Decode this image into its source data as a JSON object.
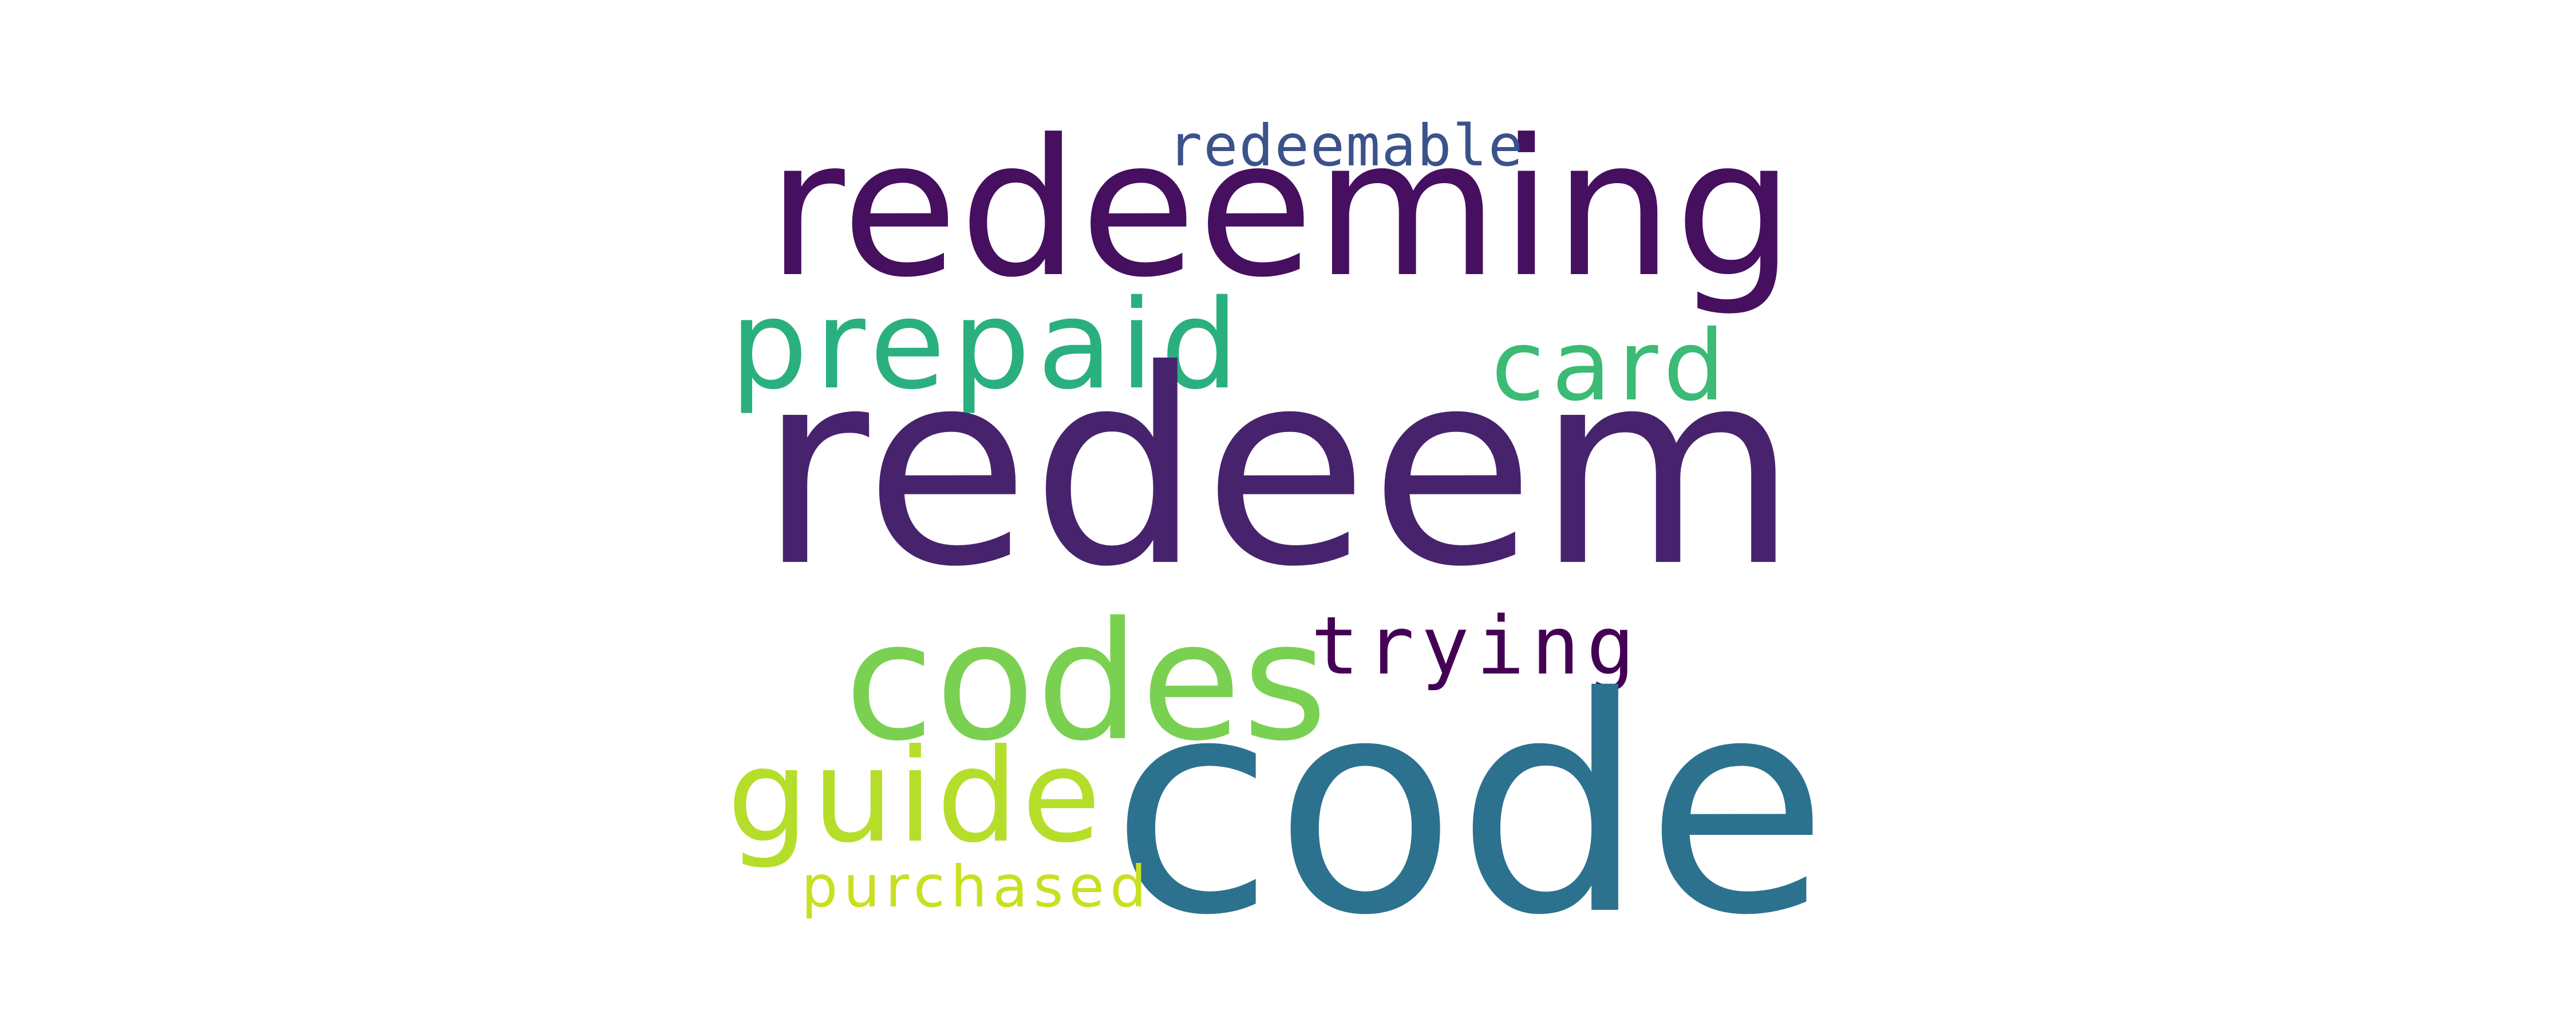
{
  "word_cloud": {
    "background": "#ffffff",
    "words": [
      {
        "id": "redeem",
        "text": "redeem",
        "color": "#47236e"
      },
      {
        "id": "redeeming",
        "text": "redeeming",
        "color": "#470f5f"
      },
      {
        "id": "redeemable",
        "text": "redeemable",
        "color": "#3b528b"
      },
      {
        "id": "prepaid",
        "text": "prepaid",
        "color": "#2ab07f"
      },
      {
        "id": "card",
        "text": "card",
        "color": "#3bbb75"
      },
      {
        "id": "codes",
        "text": "codes",
        "color": "#7ad151"
      },
      {
        "id": "trying",
        "text": "trying",
        "color": "#440154"
      },
      {
        "id": "code",
        "text": "code",
        "color": "#2c728e"
      },
      {
        "id": "guide",
        "text": "guide",
        "color": "#b5de2b"
      },
      {
        "id": "purchased",
        "text": "purchased",
        "color": "#c8e020"
      }
    ]
  }
}
